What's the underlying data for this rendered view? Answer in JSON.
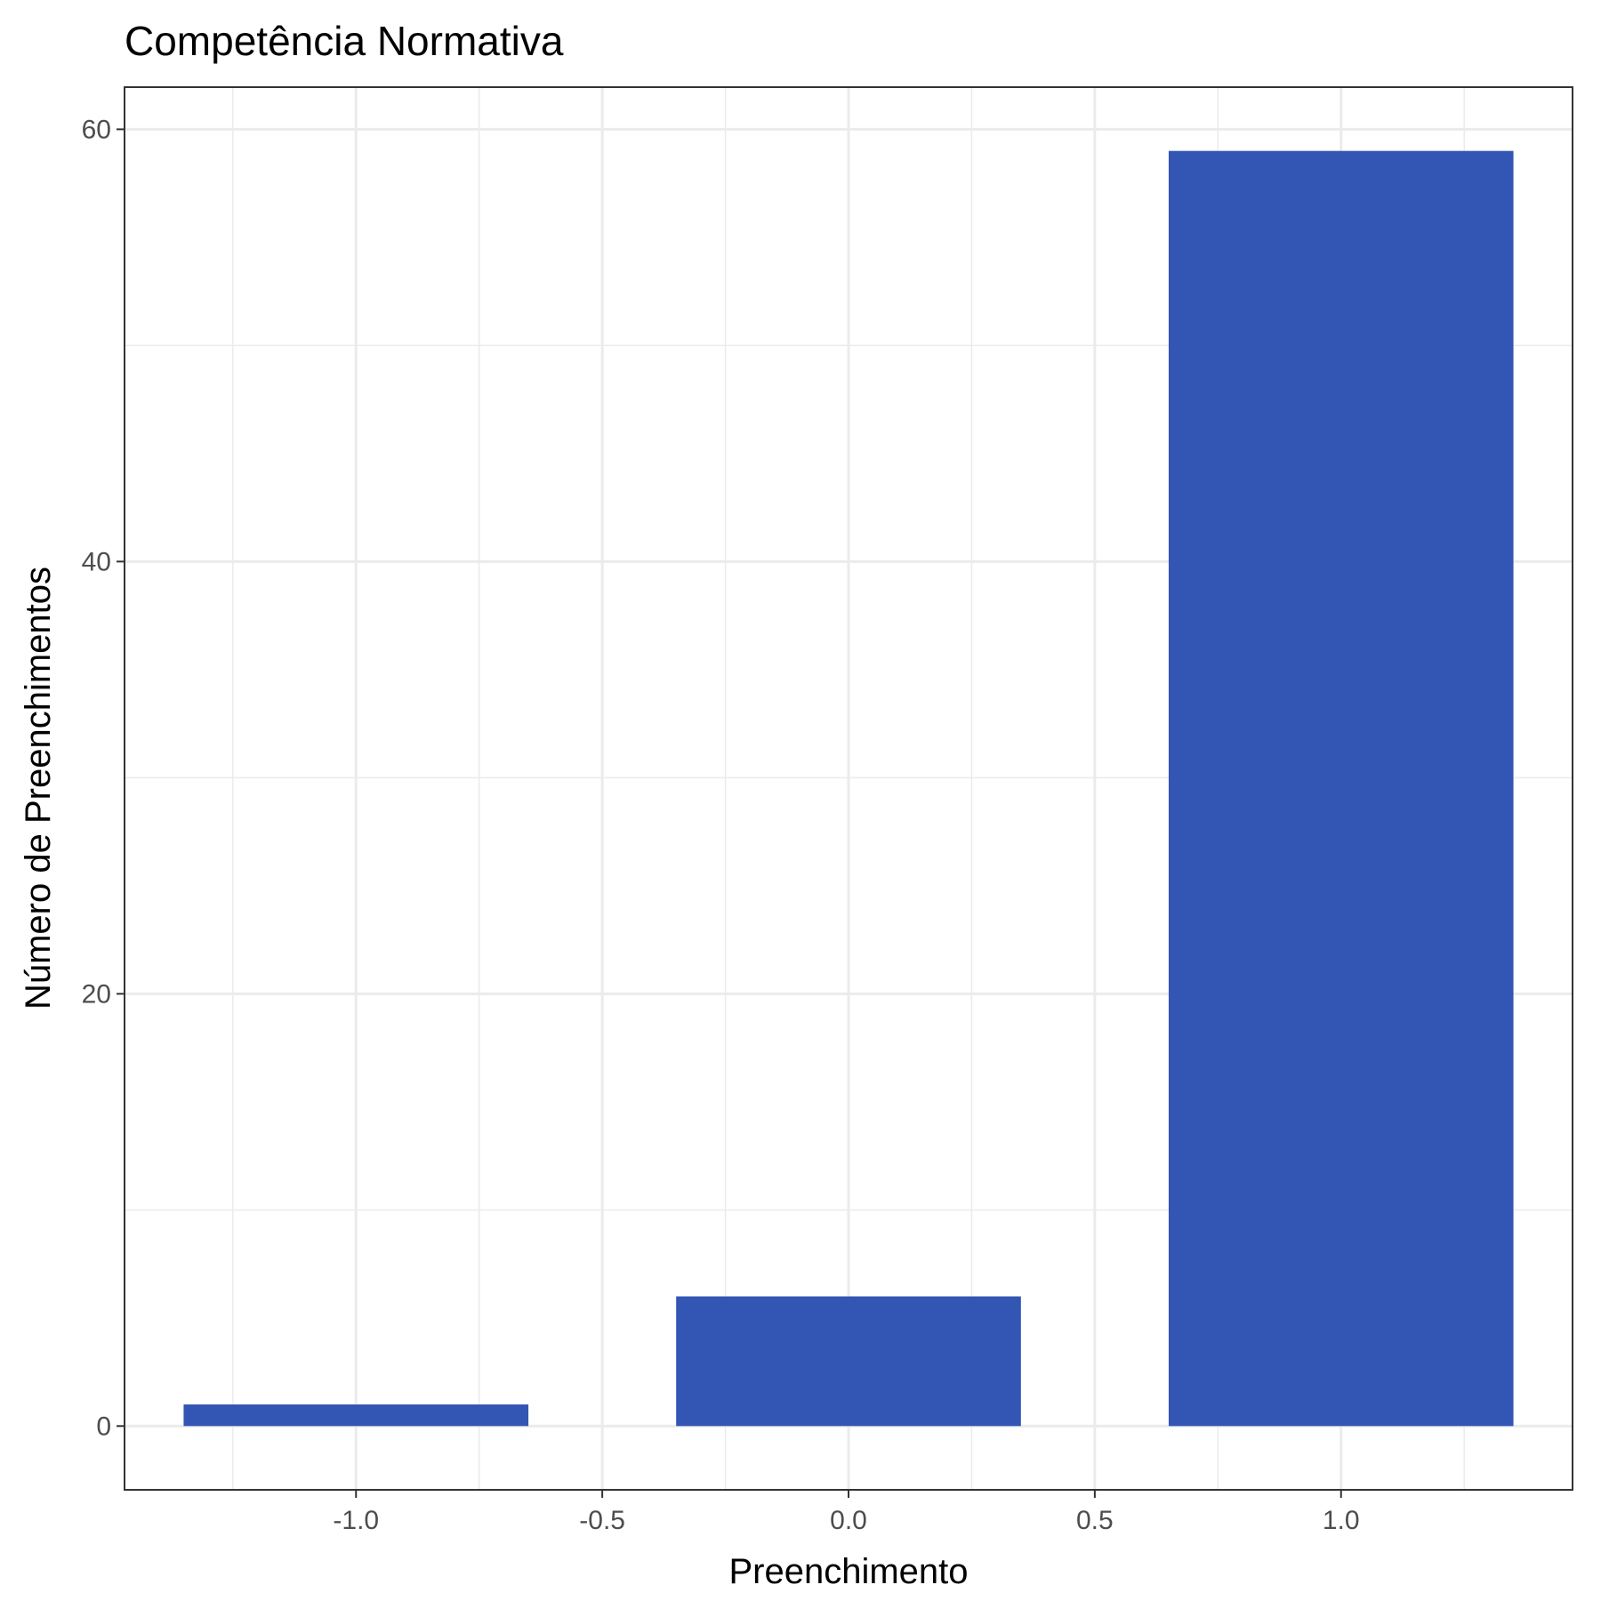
{
  "chart_data": {
    "type": "bar",
    "title": "Competência Normativa",
    "xlabel": "Preenchimento",
    "ylabel": "Número de Preenchimentos",
    "x": [
      -1,
      0,
      1
    ],
    "values": [
      1,
      6,
      59
    ],
    "bar_width": 0.7,
    "xlim": [
      -1.47,
      1.47
    ],
    "ylim": [
      -2.95,
      61.95
    ],
    "x_ticks": [
      -1.0,
      -0.5,
      0.0,
      0.5,
      1.0
    ],
    "x_tick_labels": [
      "-1.0",
      "-0.5",
      "0.0",
      "0.5",
      "1.0"
    ],
    "y_ticks": [
      0,
      20,
      40,
      60
    ],
    "y_tick_labels": [
      "0",
      "20",
      "40",
      "60"
    ],
    "x_minor_ticks": [
      -1.25,
      -0.75,
      -0.25,
      0.25,
      0.75,
      1.25
    ],
    "y_minor_ticks": [
      10,
      30,
      50
    ],
    "grid": true,
    "legend": "none",
    "bar_color": "#3355b3"
  }
}
